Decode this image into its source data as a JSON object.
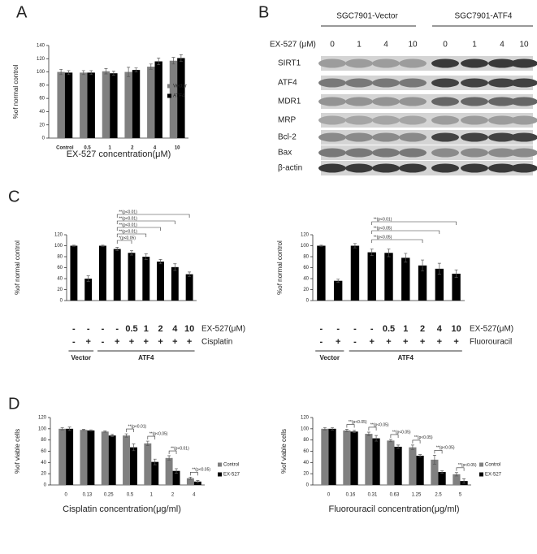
{
  "panel_labels": [
    "A",
    "B",
    "C",
    "D"
  ],
  "blot": {
    "groups": [
      "SGC7901-Vector",
      "SGC7901-ATF4"
    ],
    "treatment_label": "EX-527 (μM)",
    "doses": [
      "0",
      "1",
      "4",
      "10",
      "0",
      "1",
      "4",
      "10"
    ],
    "rows": [
      "SIRT1",
      "ATF4",
      "MDR1",
      "MRP",
      "Bcl-2",
      "Bax",
      "β-actin"
    ]
  },
  "chart_data": [
    {
      "type": "bar",
      "ylabel": "%of normal control",
      "xlabel": "EX-527 concentration(μM)",
      "categories": [
        "Control",
        "0.5",
        "1",
        "2",
        "4",
        "10"
      ],
      "series": [
        {
          "name": "Vector",
          "color": "#808080",
          "values": [
            100,
            99,
            101,
            100,
            108,
            117
          ],
          "errors": [
            4,
            3,
            4,
            7,
            4,
            5
          ]
        },
        {
          "name": "ATF4",
          "color": "#000000",
          "values": [
            99,
            99,
            98,
            103,
            116,
            121
          ],
          "errors": [
            3,
            3,
            3,
            3,
            5,
            5
          ]
        }
      ],
      "ylim": [
        0,
        140
      ],
      "yticks": [
        0,
        20,
        40,
        60,
        80,
        100,
        120,
        140
      ],
      "legend": "right"
    },
    {
      "type": "bar",
      "ylabel": "%of normal control",
      "color": "#000000",
      "values": [
        100,
        40,
        100,
        94,
        87,
        80,
        71,
        61,
        48
      ],
      "errors": [
        1,
        5,
        1,
        3,
        4,
        5,
        4,
        6,
        4
      ],
      "ylim": [
        0,
        120
      ],
      "yticks": [
        0,
        20,
        40,
        60,
        80,
        100,
        120
      ],
      "annotations": [
        "**(p<0.01)",
        "**(p<0.01)",
        "**(p<0.01)",
        "**(p<0.01)",
        "*(p<0.05)"
      ],
      "rows": [
        {
          "name": "EX-527(μM)",
          "cells": [
            "-",
            "-",
            "-",
            "-",
            "0.5",
            "1",
            "2",
            "4",
            "10"
          ]
        },
        {
          "name": "Cisplatin",
          "cells": [
            "-",
            "+",
            "-",
            "+",
            "+",
            "+",
            "+",
            "+",
            "+"
          ]
        }
      ],
      "groups": [
        "Vector",
        "ATF4"
      ]
    },
    {
      "type": "bar",
      "ylabel": "%of normal control",
      "color": "#000000",
      "values": [
        100,
        36,
        100,
        88,
        87,
        78,
        64,
        58,
        49
      ],
      "errors": [
        1,
        3,
        4,
        6,
        7,
        8,
        10,
        10,
        7
      ],
      "ylim": [
        0,
        120
      ],
      "yticks": [
        0,
        20,
        40,
        60,
        80,
        100,
        120
      ],
      "annotations": [
        "**(p<0.01)",
        "**(p<0.05)",
        "**(p<0.05)"
      ],
      "rows": [
        {
          "name": "EX-527(μM)",
          "cells": [
            "-",
            "-",
            "-",
            "-",
            "0.5",
            "1",
            "2",
            "4",
            "10"
          ]
        },
        {
          "name": "Fluorouracil",
          "cells": [
            "-",
            "+",
            "-",
            "+",
            "+",
            "+",
            "+",
            "+",
            "+"
          ]
        }
      ],
      "groups": [
        "Vector",
        "ATF4"
      ]
    },
    {
      "type": "bar",
      "ylabel": "%of viable cells",
      "xlabel": "Cisplatin concentration(μg/ml)",
      "categories": [
        "0",
        "0.13",
        "0.25",
        "0.5",
        "1",
        "2",
        "4"
      ],
      "series": [
        {
          "name": "Control",
          "color": "#808080",
          "values": [
            100,
            98,
            95,
            88,
            74,
            48,
            12
          ],
          "errors": [
            2,
            1,
            1,
            3,
            4,
            4,
            2
          ]
        },
        {
          "name": "EX-527",
          "color": "#000000",
          "values": [
            100,
            97,
            88,
            67,
            41,
            25,
            6
          ],
          "errors": [
            3,
            1,
            2,
            6,
            5,
            4,
            2
          ]
        }
      ],
      "ylim": [
        0,
        120
      ],
      "yticks": [
        0,
        20,
        40,
        60,
        80,
        100,
        120
      ],
      "legend": "right",
      "annotations": [
        null,
        null,
        null,
        "**(p<0.01)",
        "**(p<0.05)",
        "**(p<0.01)",
        "**(p<0.05)"
      ]
    },
    {
      "type": "bar",
      "ylabel": "%of viable cells",
      "xlabel": "Fluorouracil concentration(μg/ml)",
      "categories": [
        "0",
        "0.16",
        "0.31",
        "0.63",
        "1.25",
        "2.5",
        "5"
      ],
      "series": [
        {
          "name": "Control",
          "color": "#808080",
          "values": [
            100,
            97,
            91,
            79,
            67,
            45,
            19
          ],
          "errors": [
            2,
            2,
            3,
            2,
            4,
            8,
            3
          ]
        },
        {
          "name": "EX-527",
          "color": "#000000",
          "values": [
            100,
            95,
            83,
            68,
            52,
            23,
            7
          ],
          "errors": [
            2,
            2,
            5,
            3,
            2,
            2,
            4
          ]
        }
      ],
      "ylim": [
        0,
        120
      ],
      "yticks": [
        0,
        20,
        40,
        60,
        80,
        100,
        120
      ],
      "legend": "right",
      "annotations": [
        null,
        "**(p<0.05)",
        "**(p<0.05)",
        "**(p<0.05)",
        "**(p<0.05)",
        "**(p<0.05)",
        "**(p<0.05)"
      ]
    }
  ]
}
